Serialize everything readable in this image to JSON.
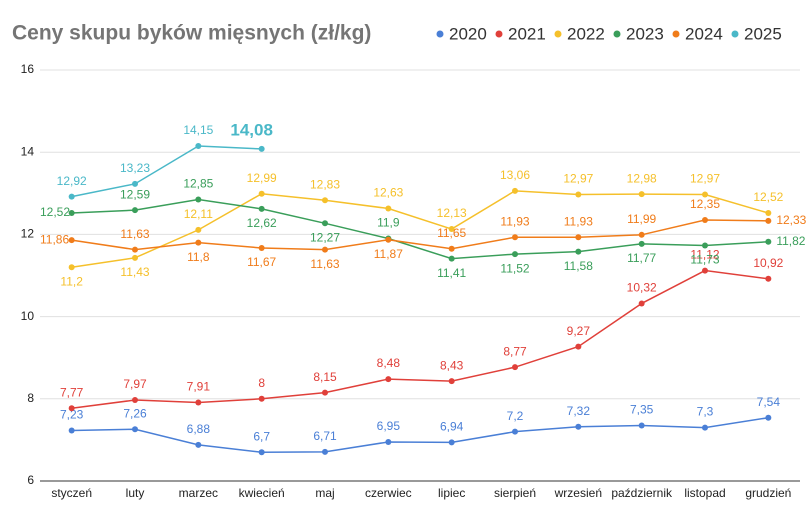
{
  "chart_data": {
    "type": "line",
    "title": "Ceny skupu byków mięsnych (zł/kg)",
    "categories": [
      "styczeń",
      "luty",
      "marzec",
      "kwiecień",
      "maj",
      "czerwiec",
      "lipiec",
      "sierpień",
      "wrzesień",
      "październik",
      "listopad",
      "grudzień"
    ],
    "series": [
      {
        "name": "2020",
        "color": "#4a7fd6",
        "values": [
          7.23,
          7.26,
          6.88,
          6.7,
          6.71,
          6.95,
          6.94,
          7.2,
          7.32,
          7.35,
          7.3,
          7.54
        ],
        "value_labels": [
          "7,23",
          "7,26",
          "6,88",
          "6,7",
          "6,71",
          "6,95",
          "6,94",
          "7,2",
          "7,32",
          "7,35",
          "7,3",
          "7,54"
        ]
      },
      {
        "name": "2021",
        "color": "#e0403a",
        "values": [
          7.77,
          7.97,
          7.91,
          8,
          8.15,
          8.48,
          8.43,
          8.77,
          9.27,
          10.32,
          11.12,
          10.92
        ],
        "value_labels": [
          "7,77",
          "7,97",
          "7,91",
          "8",
          "8,15",
          "8,48",
          "8,43",
          "8,77",
          "9,27",
          "10,32",
          "11,12",
          "10,92"
        ]
      },
      {
        "name": "2022",
        "color": "#f5c02b",
        "values": [
          11.2,
          11.43,
          12.11,
          12.99,
          12.83,
          12.63,
          12.13,
          13.06,
          12.97,
          12.98,
          12.97,
          12.52
        ],
        "value_labels": [
          "11,2",
          "11,43",
          "12,11",
          "12,99",
          "12,83",
          "12,63",
          "12,13",
          "13,06",
          "12,97",
          "12,98",
          "12,97",
          "12,52"
        ]
      },
      {
        "name": "2023",
        "color": "#3a9e5a",
        "values": [
          12.52,
          12.59,
          12.85,
          12.62,
          12.27,
          11.9,
          11.41,
          11.52,
          11.58,
          11.77,
          11.73,
          11.82
        ],
        "value_labels": [
          "12,52",
          "12,59",
          "12,85",
          "12,62",
          "12,27",
          "11,9",
          "11,41",
          "11,52",
          "11,58",
          "11,77",
          "11,73",
          "11,82"
        ]
      },
      {
        "name": "2024",
        "color": "#f07c1a",
        "values": [
          11.86,
          11.63,
          11.8,
          11.67,
          11.63,
          11.87,
          11.65,
          11.93,
          11.93,
          11.99,
          12.35,
          12.33
        ],
        "value_labels": [
          "11,86",
          "11,63",
          "11,8",
          "11,67",
          "11,63",
          "11,87",
          "11,65",
          "11,93",
          "11,93",
          "11,99",
          "12,35",
          "12,33"
        ]
      },
      {
        "name": "2025",
        "color": "#4ab8c8",
        "values": [
          12.92,
          13.23,
          14.15,
          14.08,
          null,
          null,
          null,
          null,
          null,
          null,
          null,
          null
        ],
        "value_labels": [
          "12,92",
          "13,23",
          "14,15",
          "14,08",
          null,
          null,
          null,
          null,
          null,
          null,
          null,
          null
        ]
      }
    ],
    "ylim": [
      6,
      16
    ],
    "yticks": [
      6,
      8,
      10,
      12,
      14,
      16
    ],
    "grid": true,
    "legend": "top-right"
  }
}
